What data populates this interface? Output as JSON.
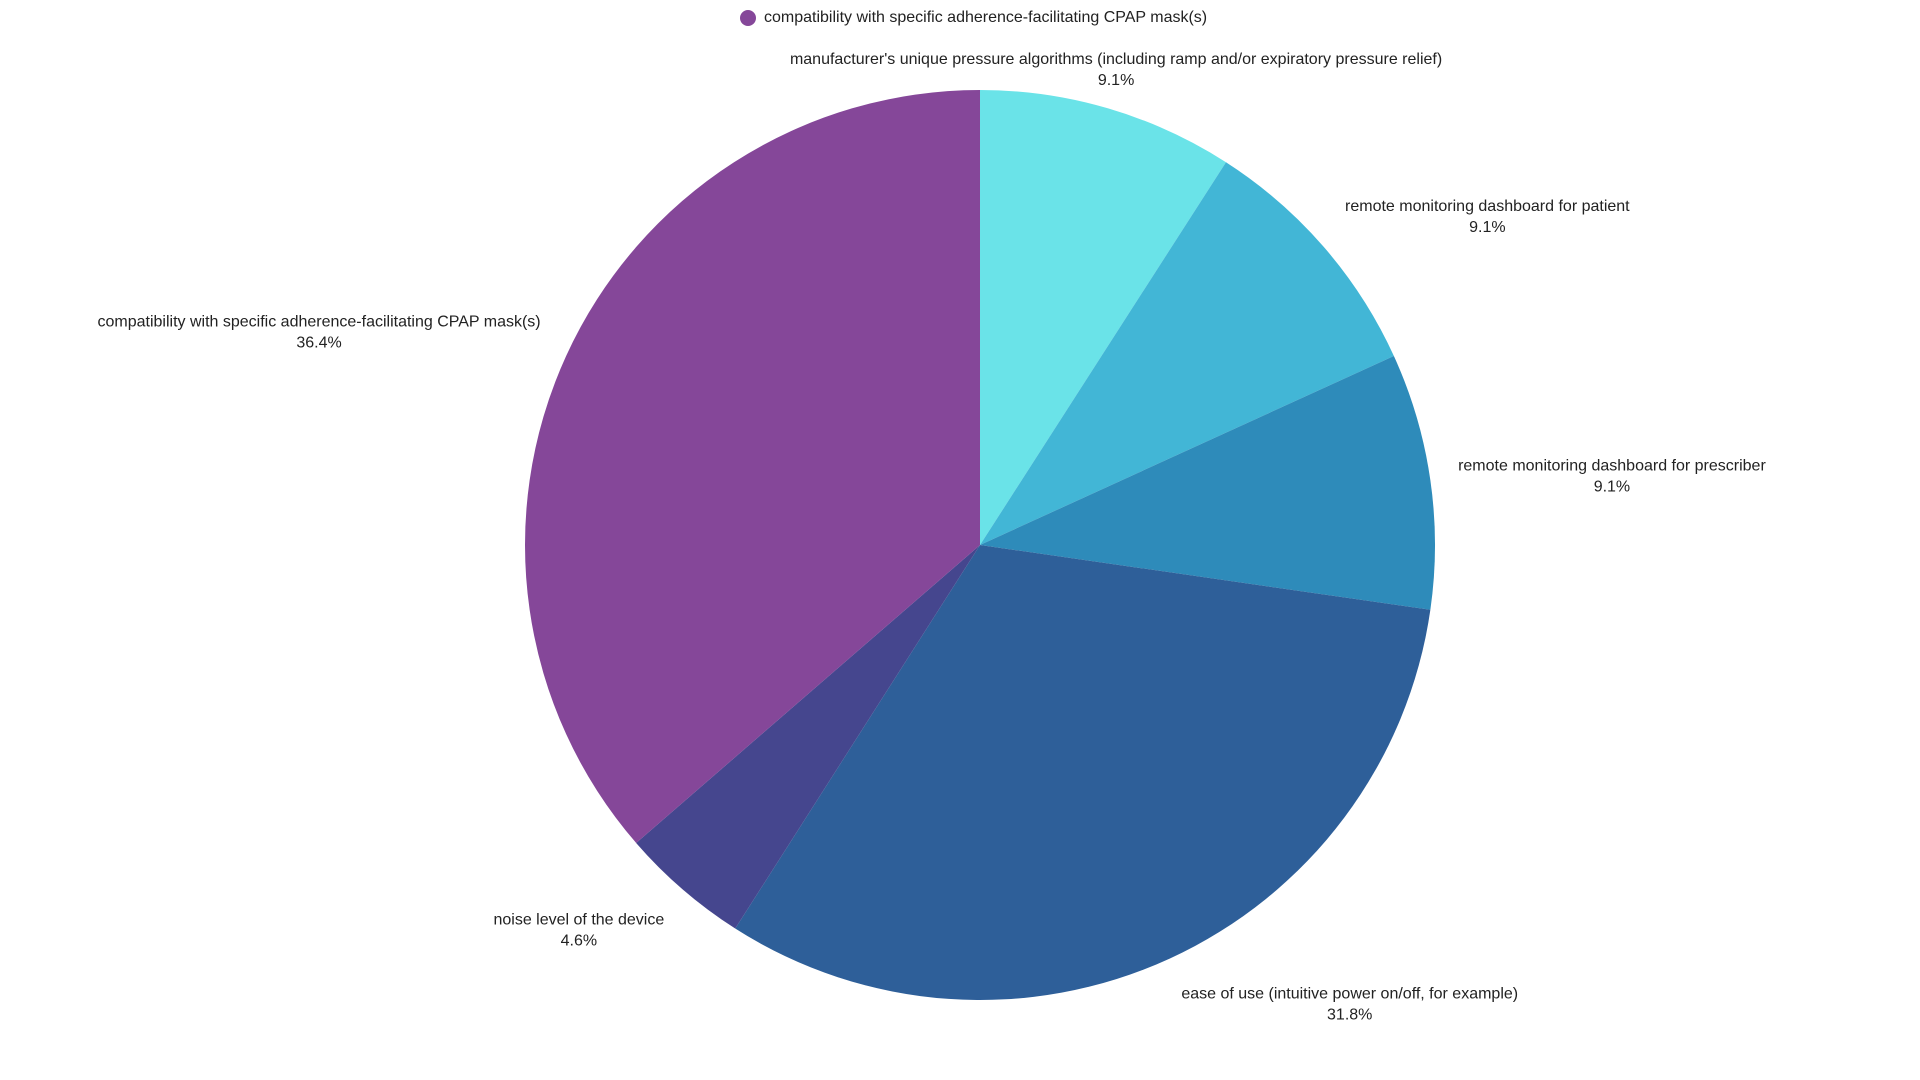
{
  "chart_data": {
    "type": "pie",
    "categories": [
      "manufacturer's unique pressure algorithms (including ramp and/or expiratory pressure relief)",
      "remote monitoring dashboard for patient",
      "remote monitoring dashboard for prescriber",
      "ease of use (intuitive power on/off, for example)",
      "noise level of the device",
      "compatibility with specific adherence-facilitating CPAP mask(s)"
    ],
    "values": [
      9.1,
      9.1,
      9.1,
      31.8,
      4.6,
      36.4
    ],
    "value_labels": [
      "9.1%",
      "9.1%",
      "9.1%",
      "31.8%",
      "4.6%",
      "36.4%"
    ],
    "colors": [
      "#6ae3e8",
      "#42b6d6",
      "#2e8bba",
      "#2e5f99",
      "#45468e",
      "#854799"
    ]
  }
}
